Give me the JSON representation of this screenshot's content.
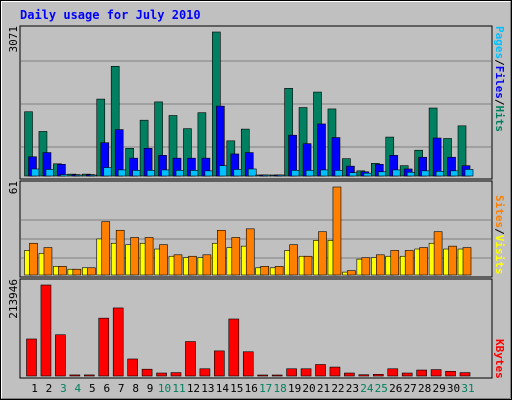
{
  "chart_data": [
    {
      "type": "bar",
      "title": "Daily usage for July 2010",
      "ylabel_parts": [
        "Pages",
        "Files",
        "Hits"
      ],
      "ymax_label": "3071",
      "ylim": [
        0,
        3071
      ],
      "categories": [
        "1",
        "2",
        "3",
        "4",
        "5",
        "6",
        "7",
        "8",
        "9",
        "10",
        "11",
        "12",
        "13",
        "14",
        "15",
        "16",
        "17",
        "18",
        "19",
        "20",
        "21",
        "22",
        "23",
        "24",
        "25",
        "26",
        "27",
        "28",
        "29",
        "30",
        "31"
      ],
      "series": [
        {
          "name": "Hits",
          "values": [
            1370,
            950,
            260,
            40,
            40,
            1640,
            2340,
            590,
            1190,
            1580,
            1290,
            1010,
            1350,
            3071,
            750,
            1000,
            20,
            20,
            1870,
            1460,
            1790,
            1430,
            370,
            110,
            270,
            830,
            220,
            550,
            1450,
            800,
            1070
          ]
        },
        {
          "name": "Files",
          "values": [
            410,
            500,
            250,
            30,
            30,
            710,
            990,
            380,
            590,
            440,
            380,
            380,
            380,
            1490,
            470,
            500,
            20,
            20,
            870,
            690,
            1110,
            820,
            210,
            90,
            250,
            440,
            150,
            400,
            810,
            400,
            220
          ]
        },
        {
          "name": "Pages",
          "values": [
            150,
            140,
            30,
            20,
            20,
            180,
            130,
            120,
            120,
            130,
            120,
            120,
            110,
            220,
            140,
            150,
            10,
            10,
            120,
            120,
            130,
            120,
            70,
            60,
            90,
            130,
            80,
            110,
            100,
            110,
            140
          ]
        }
      ],
      "colors": {
        "Hits": "#008060",
        "Files": "#0000FF",
        "Pages": "#00C0FF"
      }
    },
    {
      "type": "bar",
      "ylabel_parts": [
        "Sites",
        "Visits"
      ],
      "ymax_label": "61",
      "ylim": [
        0,
        61
      ],
      "categories": [
        "1",
        "2",
        "3",
        "4",
        "5",
        "6",
        "7",
        "8",
        "9",
        "10",
        "11",
        "12",
        "13",
        "14",
        "15",
        "16",
        "17",
        "18",
        "19",
        "20",
        "21",
        "22",
        "23",
        "24",
        "25",
        "26",
        "27",
        "28",
        "29",
        "30",
        "31"
      ],
      "series": [
        {
          "name": "Visits",
          "values": [
            22,
            19,
            6,
            4,
            5,
            37,
            31,
            26,
            26,
            21,
            14,
            13,
            14,
            31,
            26,
            32,
            6,
            6,
            21,
            13,
            30,
            61,
            3,
            12,
            14,
            17,
            17,
            19,
            30,
            20,
            19
          ]
        },
        {
          "name": "Sites",
          "values": [
            17,
            15,
            6,
            4,
            5,
            25,
            22,
            21,
            22,
            18,
            13,
            12,
            12,
            22,
            19,
            20,
            5,
            5,
            17,
            13,
            24,
            24,
            2,
            11,
            12,
            13,
            13,
            18,
            22,
            18,
            18
          ]
        }
      ],
      "colors": {
        "Visits": "#FF8000",
        "Sites": "#FFFF00"
      }
    },
    {
      "type": "bar",
      "ylabel_parts": [
        "KBytes"
      ],
      "ymax_label": "213946",
      "ylim": [
        0,
        213946
      ],
      "categories": [
        "1",
        "2",
        "3",
        "4",
        "5",
        "6",
        "7",
        "8",
        "9",
        "10",
        "11",
        "12",
        "13",
        "14",
        "15",
        "16",
        "17",
        "18",
        "19",
        "20",
        "21",
        "22",
        "23",
        "24",
        "25",
        "26",
        "27",
        "28",
        "29",
        "30",
        "31"
      ],
      "series": [
        {
          "name": "KBytes",
          "values": [
            87000,
            213946,
            97000,
            2500,
            2500,
            136000,
            160000,
            40000,
            16000,
            7000,
            8000,
            81000,
            17000,
            59000,
            134000,
            57000,
            1000,
            1000,
            17000,
            17000,
            27000,
            21000,
            7000,
            3000,
            4000,
            17000,
            7000,
            14000,
            15000,
            11000,
            8000
          ]
        }
      ],
      "colors": {
        "KBytes": "#FF0000"
      }
    }
  ],
  "weekend_days": [
    3,
    4,
    10,
    11,
    17,
    18,
    24,
    25,
    31
  ],
  "colors": {
    "title": "#0000FF",
    "weekday_label": "#000000",
    "weekend_label": "#008060",
    "plot_bg": "#C0C0C0",
    "page_bg": "#C0C0C0"
  }
}
